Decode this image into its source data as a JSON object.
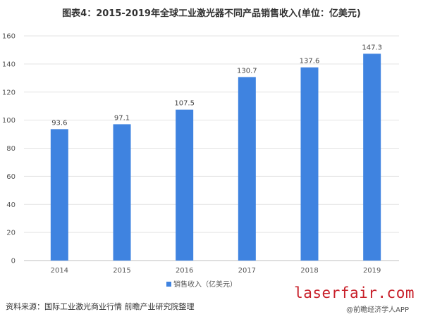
{
  "chart_data": {
    "type": "bar",
    "title": "图表4：2015-2019年全球工业激光器不同产品销售收入(单位：亿美元)",
    "categories": [
      "2014",
      "2015",
      "2016",
      "2017",
      "2018",
      "2019"
    ],
    "series": [
      {
        "name": "销售收入（亿美元）",
        "values": [
          93.6,
          97.1,
          107.5,
          130.7,
          137.6,
          147.3
        ],
        "color": "#3f83e0"
      }
    ],
    "ylim": [
      0,
      160
    ],
    "yticks": [
      0,
      20,
      40,
      60,
      80,
      100,
      120,
      140,
      160
    ],
    "grid": true,
    "legend_position": "bottom"
  },
  "footer": {
    "source": "资料来源：国际工业激光商业行情 前瞻产业研究院整理",
    "site": "laserfair.com",
    "watermark": "@前瞻经济学人APP"
  }
}
